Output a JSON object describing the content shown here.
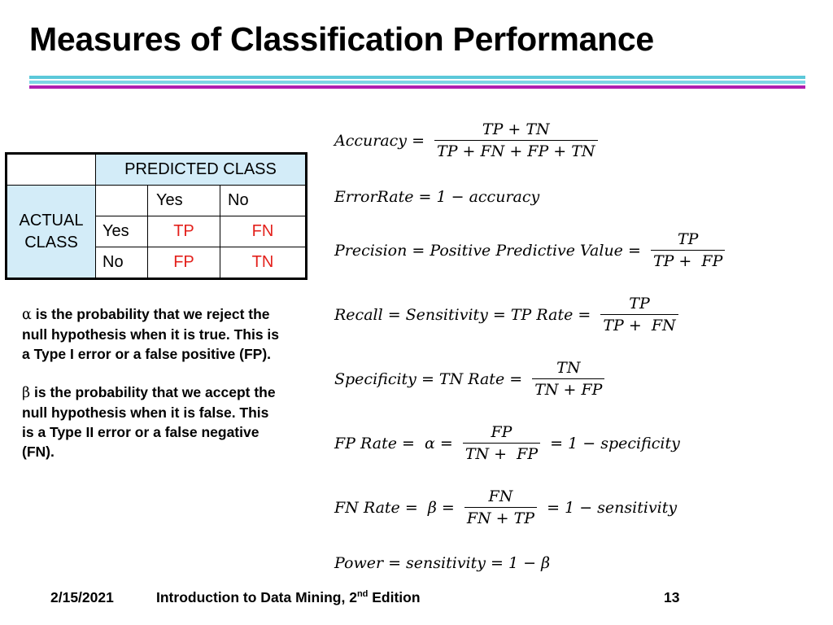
{
  "title": "Measures of Classification Performance",
  "matrix": {
    "predicted_header": "PREDICTED CLASS",
    "actual_header_line1": "ACTUAL",
    "actual_header_line2": "CLASS",
    "col_yes": "Yes",
    "col_no": "No",
    "row_yes": "Yes",
    "row_no": "No",
    "tp": "TP",
    "fn": "FN",
    "fp": "FP",
    "tn": "TN"
  },
  "notes": {
    "alpha_symbol": "α",
    "alpha_text": " is the probability that we reject the null hypothesis when it is true. This is a Type I error or a false positive (FP).",
    "beta_symbol": "β",
    "beta_text": " is the probability that we accept the null hypothesis when it is false. This is a Type II error or a false negative (FN)."
  },
  "formulas": {
    "accuracy": {
      "lhs": "Accuracy = ",
      "num": "TP + TN",
      "den": "TP + FN + FP + TN"
    },
    "error_rate": {
      "text": "ErrorRate = 1 − accuracy"
    },
    "precision": {
      "lhs": "Precision = Positive Predictive Value = ",
      "num": "TP",
      "den": "TP +  FP"
    },
    "recall": {
      "lhs": "Recall = Sensitivity = TP Rate = ",
      "num": "TP",
      "den": "TP +  FN"
    },
    "specificity": {
      "lhs": "Specificity = TN Rate = ",
      "num": "TN",
      "den": "TN + FP"
    },
    "fp_rate": {
      "lhs": "FP Rate =  α = ",
      "num": "FP",
      "den": "TN +  FP",
      "rhs": " = 1 − specificity"
    },
    "fn_rate": {
      "lhs": "FN Rate =  β = ",
      "num": "FN",
      "den": "FN + TP",
      "rhs": " = 1 − sensitivity"
    },
    "power": {
      "text": "Power = sensitivity = 1 − β"
    }
  },
  "footer": {
    "date": "2/15/2021",
    "course_prefix": "Introduction to Data Mining, 2",
    "course_sup": "nd",
    "course_suffix": " Edition",
    "page": "13"
  }
}
